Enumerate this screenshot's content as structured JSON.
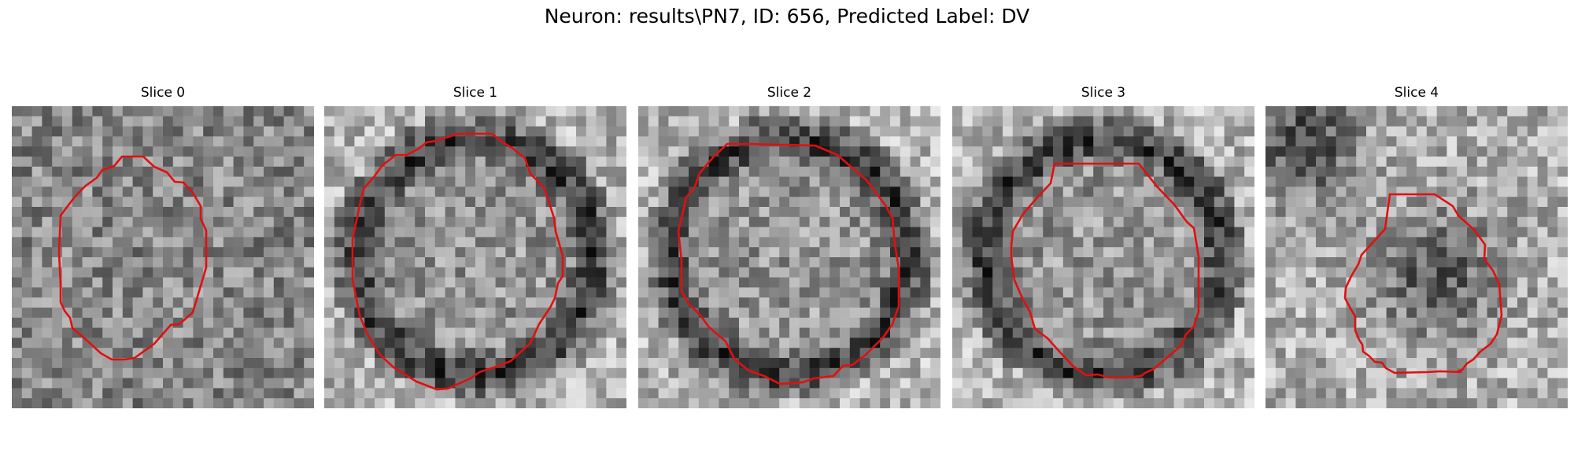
{
  "figure": {
    "title": "Neuron: results\\PN7, ID: 656, Predicted Label: DV"
  },
  "panels": [
    {
      "title": "Slice 0",
      "seed": 11,
      "profile": "noise"
    },
    {
      "title": "Slice 1",
      "seed": 23,
      "profile": "ring"
    },
    {
      "title": "Slice 2",
      "seed": 37,
      "profile": "ring"
    },
    {
      "title": "Slice 3",
      "seed": 51,
      "profile": "ring"
    },
    {
      "title": "Slice 4",
      "seed": 67,
      "profile": "dark-blob"
    }
  ],
  "colors": {
    "contour": "#e01010",
    "background": "#ffffff"
  },
  "image_grid": 30
}
